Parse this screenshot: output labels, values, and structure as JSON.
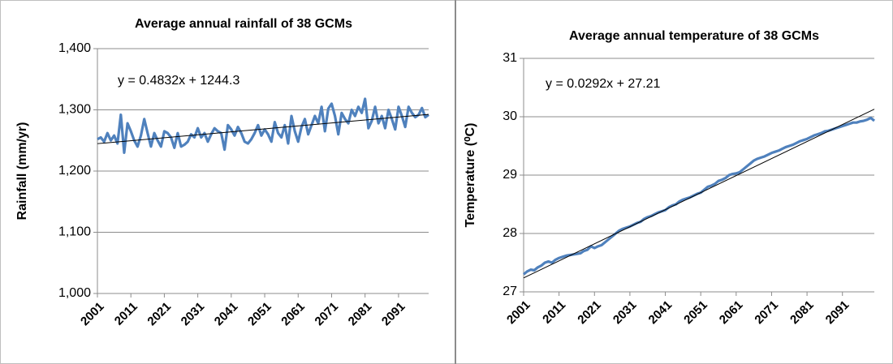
{
  "chart_data": [
    {
      "type": "line",
      "title": "Average annual rainfall of 38 GCMs",
      "y_label": "Rainfall (mm/yr)",
      "x": [
        2001,
        2002,
        2003,
        2004,
        2005,
        2006,
        2007,
        2008,
        2009,
        2010,
        2011,
        2012,
        2013,
        2014,
        2015,
        2016,
        2017,
        2018,
        2019,
        2020,
        2021,
        2022,
        2023,
        2024,
        2025,
        2026,
        2027,
        2028,
        2029,
        2030,
        2031,
        2032,
        2033,
        2034,
        2035,
        2036,
        2037,
        2038,
        2039,
        2040,
        2041,
        2042,
        2043,
        2044,
        2045,
        2046,
        2047,
        2048,
        2049,
        2050,
        2051,
        2052,
        2053,
        2054,
        2055,
        2056,
        2057,
        2058,
        2059,
        2060,
        2061,
        2062,
        2063,
        2064,
        2065,
        2066,
        2067,
        2068,
        2069,
        2070,
        2071,
        2072,
        2073,
        2074,
        2075,
        2076,
        2077,
        2078,
        2079,
        2080,
        2081,
        2082,
        2083,
        2084,
        2085,
        2086,
        2087,
        2088,
        2089,
        2090,
        2091,
        2092,
        2093,
        2094,
        2095,
        2096,
        2097,
        2098,
        2099,
        2100
      ],
      "series": [
        {
          "color": "#4f81bd",
          "values": [
            1252,
            1255,
            1248,
            1262,
            1250,
            1258,
            1245,
            1292,
            1230,
            1278,
            1265,
            1250,
            1240,
            1258,
            1285,
            1262,
            1240,
            1262,
            1250,
            1240,
            1265,
            1262,
            1255,
            1238,
            1262,
            1240,
            1243,
            1248,
            1260,
            1255,
            1270,
            1255,
            1262,
            1248,
            1260,
            1270,
            1265,
            1262,
            1235,
            1275,
            1268,
            1258,
            1272,
            1262,
            1248,
            1245,
            1252,
            1262,
            1275,
            1258,
            1268,
            1260,
            1248,
            1280,
            1262,
            1255,
            1275,
            1245,
            1290,
            1265,
            1248,
            1272,
            1285,
            1260,
            1275,
            1290,
            1278,
            1305,
            1265,
            1302,
            1310,
            1290,
            1260,
            1295,
            1285,
            1278,
            1300,
            1290,
            1305,
            1295,
            1318,
            1270,
            1282,
            1305,
            1278,
            1290,
            1270,
            1300,
            1285,
            1268,
            1305,
            1290,
            1272,
            1305,
            1295,
            1288,
            1292,
            1303,
            1288,
            1292
          ]
        }
      ],
      "trendline": {
        "label": "y = 0.4832x + 1244.3",
        "slope": 0.4832,
        "intercept": 1244.3,
        "color": "#000000"
      },
      "xlim": [
        2001,
        2100
      ],
      "xticks": [
        2001,
        2011,
        2021,
        2031,
        2041,
        2051,
        2061,
        2071,
        2081,
        2091
      ],
      "ylim": [
        1000,
        1400
      ],
      "yticks": [
        {
          "value": 1000,
          "label": "1,000"
        },
        {
          "value": 1100,
          "label": "1,100"
        },
        {
          "value": 1200,
          "label": "1,200"
        },
        {
          "value": 1300,
          "label": "1,300"
        },
        {
          "value": 1400,
          "label": "1,400"
        }
      ],
      "grid": true
    },
    {
      "type": "line",
      "title": "Average annual temperature of 38 GCMs",
      "y_label": "Temperature (⁰C)",
      "x": [
        2001,
        2002,
        2003,
        2004,
        2005,
        2006,
        2007,
        2008,
        2009,
        2010,
        2011,
        2012,
        2013,
        2014,
        2015,
        2016,
        2017,
        2018,
        2019,
        2020,
        2021,
        2022,
        2023,
        2024,
        2025,
        2026,
        2027,
        2028,
        2029,
        2030,
        2031,
        2032,
        2033,
        2034,
        2035,
        2036,
        2037,
        2038,
        2039,
        2040,
        2041,
        2042,
        2043,
        2044,
        2045,
        2046,
        2047,
        2048,
        2049,
        2050,
        2051,
        2052,
        2053,
        2054,
        2055,
        2056,
        2057,
        2058,
        2059,
        2060,
        2061,
        2062,
        2063,
        2064,
        2065,
        2066,
        2067,
        2068,
        2069,
        2070,
        2071,
        2072,
        2073,
        2074,
        2075,
        2076,
        2077,
        2078,
        2079,
        2080,
        2081,
        2082,
        2083,
        2084,
        2085,
        2086,
        2087,
        2088,
        2089,
        2090,
        2091,
        2092,
        2093,
        2094,
        2095,
        2096,
        2097,
        2098,
        2099,
        2100
      ],
      "series": [
        {
          "color": "#4f81bd",
          "values": [
            27.3,
            27.35,
            27.38,
            27.37,
            27.42,
            27.45,
            27.5,
            27.52,
            27.5,
            27.55,
            27.58,
            27.6,
            27.62,
            27.63,
            27.64,
            27.65,
            27.66,
            27.7,
            27.72,
            27.78,
            27.75,
            27.78,
            27.8,
            27.85,
            27.9,
            27.95,
            28.0,
            28.05,
            28.08,
            28.1,
            28.12,
            28.15,
            28.18,
            28.2,
            28.25,
            28.28,
            28.3,
            28.33,
            28.36,
            28.38,
            28.4,
            28.45,
            28.48,
            28.5,
            28.55,
            28.58,
            28.6,
            28.62,
            28.65,
            28.68,
            28.7,
            28.75,
            28.8,
            28.82,
            28.85,
            28.9,
            28.92,
            28.95,
            29.0,
            29.02,
            29.03,
            29.05,
            29.1,
            29.15,
            29.2,
            29.25,
            29.28,
            29.3,
            29.32,
            29.35,
            29.38,
            29.4,
            29.42,
            29.45,
            29.48,
            29.5,
            29.52,
            29.55,
            29.58,
            29.6,
            29.62,
            29.65,
            29.68,
            29.7,
            29.72,
            29.75,
            29.76,
            29.78,
            29.8,
            29.82,
            29.84,
            29.86,
            29.88,
            29.9,
            29.9,
            29.92,
            29.93,
            29.95,
            29.98,
            29.93
          ]
        }
      ],
      "trendline": {
        "label": "y = 0.0292x + 27.21",
        "slope": 0.0292,
        "intercept": 27.21,
        "color": "#000000"
      },
      "xlim": [
        2001,
        2100
      ],
      "xticks": [
        2001,
        2011,
        2021,
        2031,
        2041,
        2051,
        2061,
        2071,
        2081,
        2091
      ],
      "ylim": [
        27,
        31
      ],
      "yticks": [
        27,
        28,
        29,
        30,
        31
      ],
      "grid": true
    }
  ]
}
